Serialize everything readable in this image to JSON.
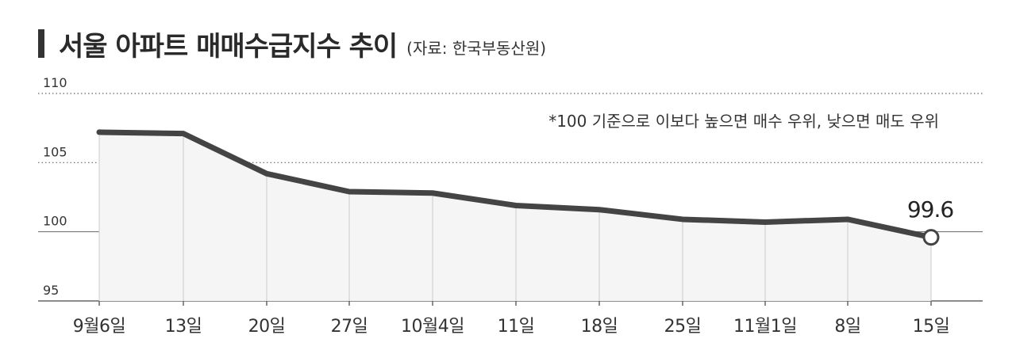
{
  "header": {
    "title": "서울 아파트 매매수급지수 추이",
    "source": "(자료: 한국부동산원)"
  },
  "chart_data": {
    "type": "area",
    "title": "서울 아파트 매매수급지수 추이",
    "source": "(자료: 한국부동산원)",
    "categories": [
      "9월6일",
      "13일",
      "20일",
      "27일",
      "10월4일",
      "11일",
      "18일",
      "25일",
      "11월1일",
      "8일",
      "15일"
    ],
    "series": [
      {
        "values": [
          107.2,
          107.1,
          104.2,
          102.9,
          102.8,
          101.9,
          101.6,
          100.9,
          100.7,
          100.9,
          99.6
        ]
      }
    ],
    "ylim": [
      95,
      110
    ],
    "yticks": [
      110,
      105,
      100,
      95
    ],
    "annotation": "*100 기준으로 이보다 높으면 매수 우위, 낮으면 매도 우위",
    "last_label": "99.6",
    "colors": {
      "line": "#444444",
      "fill": "#f5f5f5",
      "grid": "#666666",
      "marker_fill": "#ffffff"
    }
  }
}
